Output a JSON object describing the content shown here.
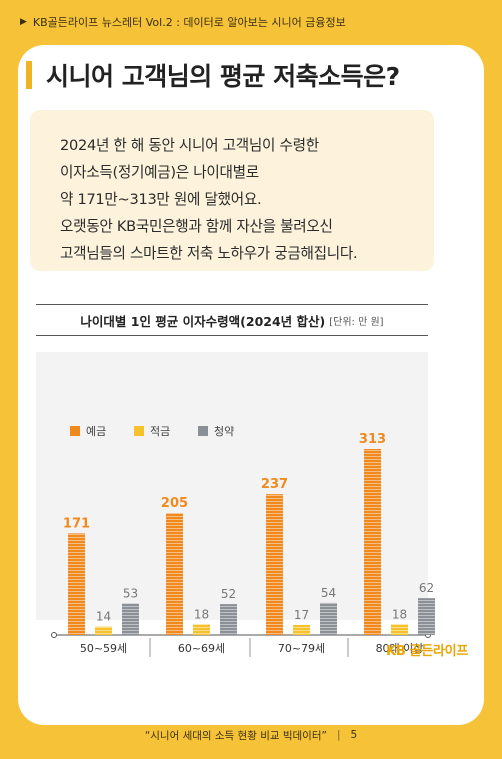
{
  "header": {
    "text": "KB골든라이프 뉴스레터 Vol.2 : 데이터로 알아보는 시니어 금융정보"
  },
  "title": "시니어 고객님의 평균 저축소득은?",
  "intro_lines": [
    "2024년 한 해 동안 시니어 고객님이 수령한",
    "이자소득(정기예금)은 나이대별로",
    "약 171만~313만 원에 달했어요.",
    "오랫동안 KB국민은행과 함께 자산을 불려오신",
    "고객님들의 스마트한 저축 노하우가 궁금해집니다."
  ],
  "chart_heading": {
    "main": "나이대별 1인 평균 이자수령액(2024년 합산)",
    "unit": "[단위: 만 원]"
  },
  "chart_data": {
    "type": "bar",
    "categories": [
      "50~59세",
      "60~69세",
      "70~79세",
      "80대 이상"
    ],
    "series": [
      {
        "name": "예금",
        "values": [
          171,
          205,
          237,
          313
        ],
        "color": "#f08a1e"
      },
      {
        "name": "적금",
        "values": [
          14,
          18,
          17,
          18
        ],
        "color": "#f5c22e"
      },
      {
        "name": "청약",
        "values": [
          53,
          52,
          54,
          62
        ],
        "color": "#8b8f96"
      }
    ]
  },
  "logo": "KB 골든라이프",
  "footer": {
    "text": "“시니어 세대의 소득 현황 비교 빅데이터”",
    "page": "5"
  }
}
